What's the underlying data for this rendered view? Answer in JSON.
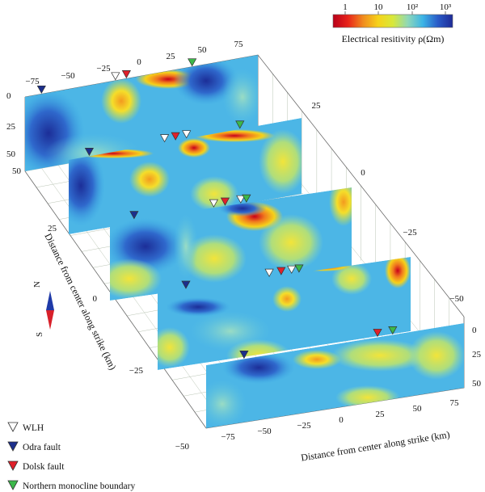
{
  "colorbar": {
    "title": "Electrical resitivity ρ(Ωm)",
    "tick_labels": [
      "1",
      "10",
      "10²",
      "10³"
    ],
    "colors": [
      "#b8001a",
      "#e8241a",
      "#f08a1e",
      "#f6d21a",
      "#d8e83a",
      "#8fd8b8",
      "#3cb4e6",
      "#2a5cc8",
      "#1e2a96"
    ]
  },
  "axes": {
    "along_strike_label": "Distance from center along strike (km)",
    "across_strike_label": "Distance from center along strike (km)",
    "top_ticks": [
      "−75",
      "−50",
      "−25",
      "0",
      "25",
      "50",
      "75"
    ],
    "bottom_ticks": [
      "−75",
      "−50",
      "−25",
      "0",
      "25",
      "50",
      "75"
    ],
    "left_ticks": [
      "50",
      "25",
      "0",
      "−25",
      "−50"
    ],
    "right_ticks": [
      "25",
      "0",
      "−25",
      "−50"
    ],
    "depth_ticks": [
      "0",
      "25",
      "50"
    ]
  },
  "compass": {
    "north": "N",
    "south": "S"
  },
  "legend": [
    {
      "label": "WLH",
      "color": "#ffffff"
    },
    {
      "label": "Odra fault",
      "color": "#1c2f8c"
    },
    {
      "label": "Dolsk fault",
      "color": "#e0202a"
    },
    {
      "label": "Northern monocline boundary",
      "color": "#3cb84a"
    }
  ],
  "profiles": [
    {
      "markers": [
        [
          "Odra fault",
          -73
        ],
        [
          "WLH",
          -19
        ],
        [
          "Dolsk fault",
          -11
        ],
        [
          "Northern monocline boundary",
          37
        ]
      ]
    },
    {
      "markers": [
        [
          "Odra fault",
          -70
        ],
        [
          "WLH",
          -15
        ],
        [
          "Dolsk fault",
          -7
        ],
        [
          "WLH",
          1
        ],
        [
          "Northern monocline boundary",
          40
        ]
      ]
    },
    {
      "markers": [
        [
          "Odra fault",
          -68
        ],
        [
          "WLH",
          -12
        ],
        [
          "Dolsk fault",
          -4
        ],
        [
          "WLH",
          7
        ],
        [
          "Northern monocline boundary",
          11
        ]
      ]
    },
    {
      "markers": [
        [
          "Odra fault",
          -66
        ],
        [
          "WLH",
          -10
        ],
        [
          "Dolsk fault",
          -2
        ],
        [
          "WLH",
          5
        ],
        [
          "Northern monocline boundary",
          10
        ]
      ]
    },
    {
      "markers": [
        [
          "Odra fault",
          -60
        ],
        [
          "Dolsk fault",
          28
        ],
        [
          "Northern monocline boundary",
          38
        ]
      ]
    }
  ]
}
